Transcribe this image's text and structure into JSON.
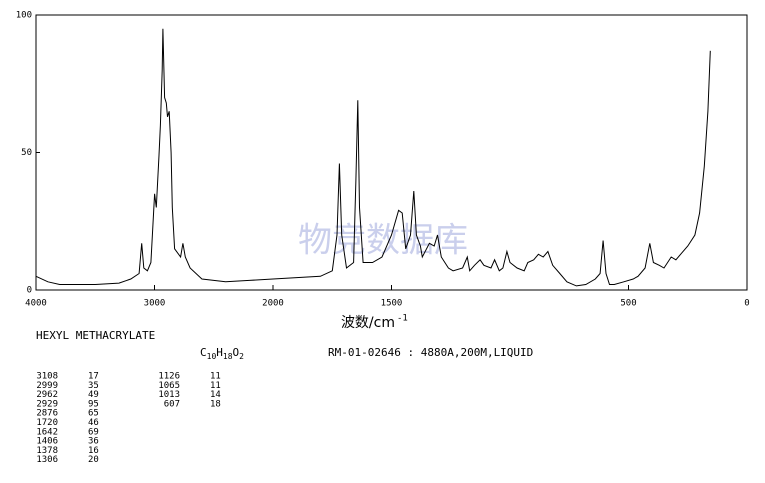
{
  "chart_data": {
    "type": "line",
    "watermark": "物竞数据库",
    "x_label": "波数/cm",
    "x_label_sup": "-1",
    "compound": "HEXYL METHACRYLATE",
    "formula": [
      "C",
      "10",
      "H",
      "18",
      "O",
      "2"
    ],
    "info": "RM-01-02646 : 4880A,200M,LIQUID",
    "peaks": [
      [
        3108,
        17
      ],
      [
        2999,
        35
      ],
      [
        2962,
        49
      ],
      [
        2929,
        95
      ],
      [
        2876,
        65
      ],
      [
        1720,
        46
      ],
      [
        1642,
        69
      ],
      [
        1406,
        36
      ],
      [
        1378,
        16
      ],
      [
        1306,
        20
      ],
      [
        1126,
        11
      ],
      [
        1065,
        11
      ],
      [
        1013,
        14
      ],
      [
        607,
        18
      ]
    ],
    "xlim": [
      4000,
      0
    ],
    "x_scale_change": 2000,
    "xticks": [
      4000,
      3000,
      2000,
      1500,
      500,
      0
    ],
    "ylim": [
      0,
      100
    ],
    "yticks": [
      0,
      50,
      100
    ],
    "color": "#000000",
    "x": [
      4000,
      3900,
      3800,
      3700,
      3500,
      3300,
      3200,
      3130,
      3108,
      3090,
      3060,
      3030,
      2999,
      2985,
      2962,
      2950,
      2935,
      2929,
      2915,
      2900,
      2890,
      2876,
      2860,
      2850,
      2830,
      2780,
      2760,
      2740,
      2700,
      2600,
      2400,
      2200,
      2000,
      1800,
      1750,
      1730,
      1720,
      1710,
      1690,
      1660,
      1650,
      1642,
      1635,
      1620,
      1580,
      1540,
      1500,
      1470,
      1455,
      1440,
      1420,
      1406,
      1395,
      1378,
      1370,
      1340,
      1320,
      1306,
      1290,
      1260,
      1240,
      1200,
      1180,
      1170,
      1150,
      1126,
      1110,
      1080,
      1065,
      1045,
      1030,
      1013,
      1000,
      970,
      940,
      925,
      900,
      880,
      860,
      840,
      820,
      790,
      760,
      720,
      680,
      640,
      620,
      607,
      595,
      580,
      560,
      520,
      480,
      460,
      430,
      410,
      395,
      370,
      350,
      320,
      300,
      280,
      250,
      220,
      200,
      180,
      165,
      155
    ],
    "values": [
      5,
      3,
      2,
      2,
      2,
      2.5,
      4,
      6,
      17,
      8,
      7,
      10,
      35,
      30,
      49,
      60,
      80,
      95,
      70,
      68,
      63,
      65,
      50,
      30,
      15,
      12,
      17,
      12,
      8,
      4,
      3,
      3.5,
      4,
      5,
      7,
      20,
      46,
      20,
      8,
      10,
      40,
      69,
      30,
      10,
      10,
      12,
      20,
      29,
      28,
      15,
      20,
      36,
      20,
      16,
      12,
      17,
      16,
      20,
      12,
      8,
      7,
      8,
      12,
      7,
      9,
      11,
      9,
      8,
      11,
      7,
      8,
      14,
      10,
      8,
      7,
      10,
      11,
      13,
      12,
      14,
      9,
      6,
      3,
      1.5,
      2,
      4,
      6,
      18,
      6,
      2,
      2,
      3,
      4,
      5,
      8,
      17,
      10,
      9,
      8,
      12,
      11,
      13,
      16,
      20,
      28,
      45,
      65,
      87
    ]
  }
}
